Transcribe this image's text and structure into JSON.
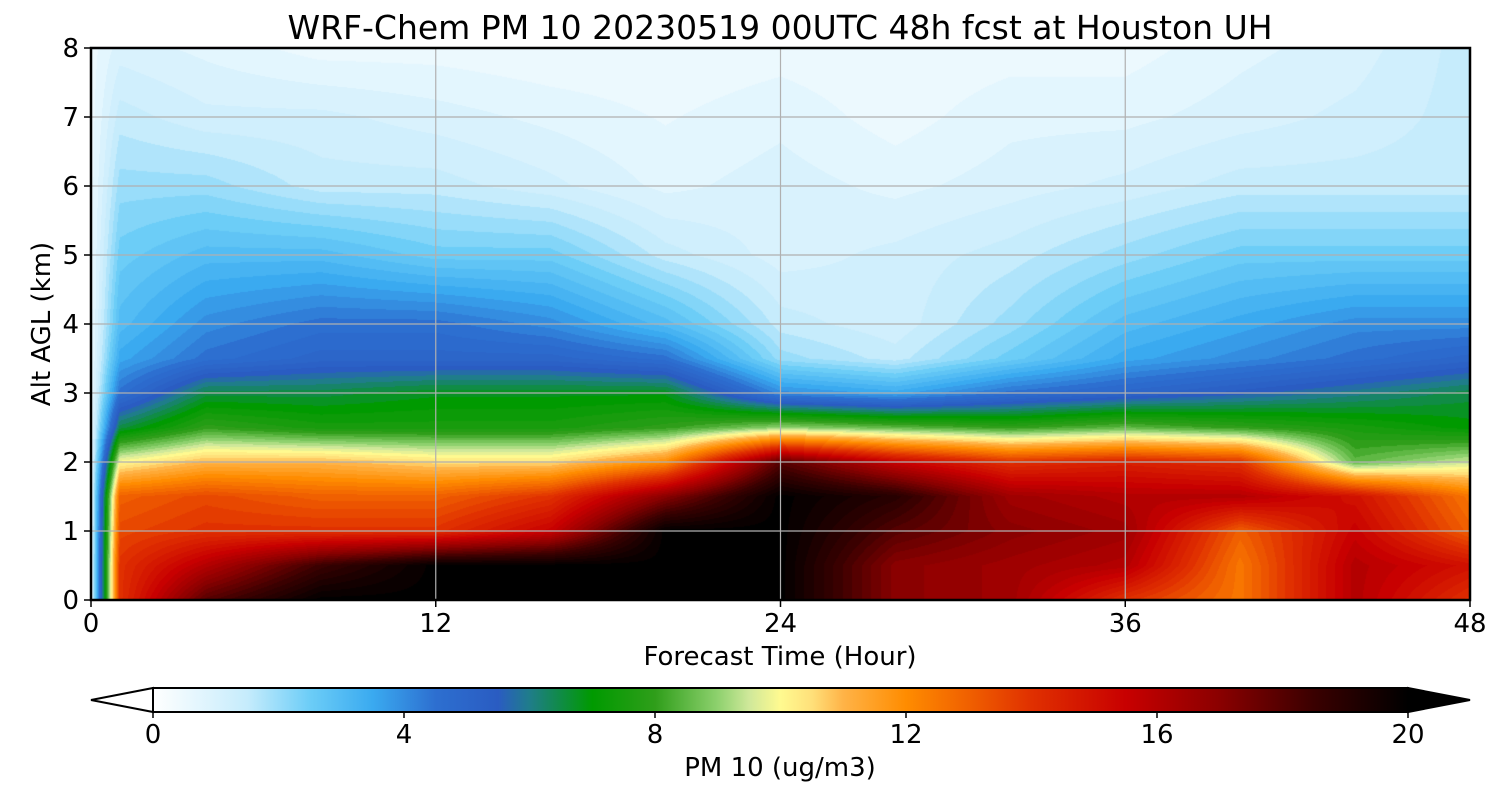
{
  "chart_data": {
    "type": "heatmap",
    "title": "WRF-Chem PM 10  20230519 00UTC 48h fcst at Houston UH",
    "xlabel": "Forecast Time (Hour)",
    "ylabel": "Alt AGL (km)",
    "xlim": [
      0,
      48
    ],
    "ylim": [
      0,
      8
    ],
    "xticks": [
      0,
      12,
      24,
      36,
      48
    ],
    "yticks": [
      0,
      1,
      2,
      3,
      4,
      5,
      6,
      7,
      8
    ],
    "grid": true,
    "x": [
      0,
      1,
      4,
      8,
      12,
      16,
      20,
      24,
      28,
      32,
      36,
      40,
      44,
      48
    ],
    "y": [
      0,
      0.5,
      1.0,
      1.5,
      2.0,
      2.5,
      3.0,
      3.5,
      4.0,
      5.0,
      6.0,
      7.0,
      8.0
    ],
    "z": [
      [
        0.5,
        14,
        18,
        20,
        20,
        20,
        20,
        20,
        17,
        16.5,
        14,
        12.5,
        16,
        14
      ],
      [
        0.5,
        14,
        16,
        18.5,
        20,
        20,
        20,
        20,
        17,
        16.5,
        16,
        12.5,
        16,
        15
      ],
      [
        0.5,
        13.5,
        14,
        14,
        14,
        15.5,
        20,
        20,
        18,
        17,
        16.5,
        13,
        15.5,
        13
      ],
      [
        0.5,
        13,
        13.5,
        13,
        13,
        14,
        17,
        20,
        19,
        16.5,
        16,
        16,
        15,
        12.5
      ],
      [
        0.5,
        10,
        11,
        11,
        10.5,
        10.5,
        12,
        18,
        15.5,
        14,
        14.5,
        14,
        8.5,
        9.5
      ],
      [
        0.5,
        6.5,
        8,
        7.5,
        7.5,
        7.5,
        8,
        9,
        8.5,
        8,
        8.5,
        8,
        7.5,
        7
      ],
      [
        0.5,
        4.5,
        6.5,
        6.5,
        6.8,
        6.8,
        6.8,
        4,
        3.5,
        4.5,
        5,
        5.5,
        6,
        6.5
      ],
      [
        0.5,
        3.5,
        4.5,
        5,
        5,
        5,
        4.5,
        2,
        1.5,
        2.5,
        3.5,
        4,
        4.5,
        5
      ],
      [
        0.5,
        3,
        4,
        4.5,
        4.5,
        4,
        3,
        1.5,
        1.2,
        2,
        3,
        3.5,
        4,
        4
      ],
      [
        0.5,
        2.5,
        3,
        3,
        2.5,
        2.5,
        1.5,
        1,
        1.2,
        1.5,
        2,
        2.5,
        2.5,
        2.5
      ],
      [
        0.5,
        2,
        2,
        1.5,
        1.5,
        1.2,
        0.8,
        1,
        0.8,
        1,
        1.2,
        1.5,
        1.5,
        1.5
      ],
      [
        0.5,
        1.5,
        1.2,
        1.2,
        1,
        0.8,
        0.6,
        0.8,
        0.5,
        0.8,
        0.8,
        1,
        1.2,
        1.5
      ],
      [
        0.5,
        1,
        0.8,
        0.5,
        0.5,
        0.4,
        0.4,
        0.5,
        0.4,
        0.5,
        0.5,
        0.8,
        1,
        1.5
      ]
    ],
    "colorbar": {
      "label": "PM 10  (ug/m3)",
      "min": 0,
      "max": 20,
      "ticks": [
        0,
        4,
        8,
        12,
        16,
        20
      ],
      "extend": "both",
      "colorscale": [
        [
          0,
          "#ffffff"
        ],
        [
          1.5,
          "#c6ecfc"
        ],
        [
          2.5,
          "#6ccdf7"
        ],
        [
          3.5,
          "#3aaaf0"
        ],
        [
          4.5,
          "#2d6fd0"
        ],
        [
          5.5,
          "#2a5cc2"
        ],
        [
          6,
          "#1f7d8a"
        ],
        [
          7,
          "#009a00"
        ],
        [
          8,
          "#2f9e1a"
        ],
        [
          9,
          "#8ed16e"
        ],
        [
          9.5,
          "#cfe89a"
        ],
        [
          10,
          "#fffa90"
        ],
        [
          10.5,
          "#ffe07a"
        ],
        [
          11,
          "#ffb347"
        ],
        [
          12,
          "#ff8c00"
        ],
        [
          13,
          "#f06000"
        ],
        [
          14,
          "#e03000"
        ],
        [
          15.5,
          "#c80000"
        ],
        [
          17,
          "#8a0000"
        ],
        [
          18.5,
          "#3a0000"
        ],
        [
          20,
          "#000000"
        ]
      ]
    }
  }
}
